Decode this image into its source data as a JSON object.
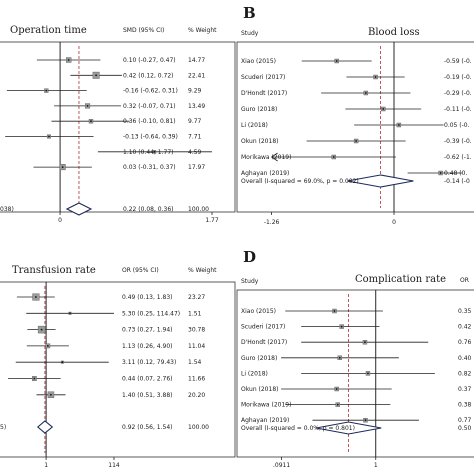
{
  "chart_data": [
    {
      "type": "forest",
      "panel": "A",
      "title": "Operation time",
      "effect_label": "SMD (95% CI)",
      "weight_label": "% Weight",
      "study_header": "",
      "overall": {
        "label_visible": "038)",
        "est": 0.22,
        "lo": 0.08,
        "hi": 0.36,
        "ci_text": "0.22 (0.08, 0.36)",
        "weight": "100.00"
      },
      "studies": [
        {
          "name": "",
          "est": 0.1,
          "lo": -0.27,
          "hi": 0.47,
          "ci_text": "0.10 (-0.27, 0.47)",
          "weight": "14.77"
        },
        {
          "name": "",
          "est": 0.42,
          "lo": 0.12,
          "hi": 0.72,
          "ci_text": "0.42 (0.12, 0.72)",
          "weight": "22.41"
        },
        {
          "name": "",
          "est": -0.16,
          "lo": -0.62,
          "hi": 0.31,
          "ci_text": "-0.16 (-0.62, 0.31)",
          "weight": "9.29"
        },
        {
          "name": "",
          "est": 0.32,
          "lo": -0.07,
          "hi": 0.71,
          "ci_text": "0.32 (-0.07, 0.71)",
          "weight": "13.49"
        },
        {
          "name": "",
          "est": 0.36,
          "lo": -0.1,
          "hi": 0.81,
          "ci_text": "0.36 (-0.10, 0.81)",
          "weight": "9.77"
        },
        {
          "name": "",
          "est": -0.13,
          "lo": -0.64,
          "hi": 0.39,
          "ci_text": "-0.13 (-0.64, 0.39)",
          "weight": "7.71"
        },
        {
          "name": "",
          "est": 1.1,
          "lo": 0.44,
          "hi": 1.77,
          "ci_text": "1.10 (0.44, 1.77)",
          "weight": "4.59"
        },
        {
          "name": "",
          "est": 0.03,
          "lo": -0.31,
          "hi": 0.37,
          "ci_text": "0.03 (-0.31, 0.37)",
          "weight": "17.97"
        }
      ],
      "x_ticks": [
        "0",
        "1.77"
      ]
    },
    {
      "type": "forest",
      "panel": "B",
      "title": "Blood loss",
      "effect_label": "",
      "weight_label": "",
      "study_header": "Study",
      "overall": {
        "label_visible": "Overall  (I-squared = 69.0%, p = 0.002)",
        "est": -0.14,
        "lo": -0.48,
        "hi": 0.2,
        "ci_text": "-0.14 (-0",
        "weight": ""
      },
      "studies": [
        {
          "name": "Xiao (2015)",
          "est": -0.59,
          "lo": -0.95,
          "hi": -0.23,
          "ci_text": "-0.59 (-0.",
          "weight": ""
        },
        {
          "name": "Scuderi (2017)",
          "est": -0.19,
          "lo": -0.49,
          "hi": 0.11,
          "ci_text": "-0.19 (-0.",
          "weight": ""
        },
        {
          "name": "D'Hondt (2017)",
          "est": -0.29,
          "lo": -0.75,
          "hi": 0.17,
          "ci_text": "-0.29 (-0.",
          "weight": ""
        },
        {
          "name": "Guro (2018)",
          "est": -0.11,
          "lo": -0.5,
          "hi": 0.28,
          "ci_text": "-0.11 (-0.",
          "weight": ""
        },
        {
          "name": "Li (2018)",
          "est": 0.05,
          "lo": -0.41,
          "hi": 0.51,
          "ci_text": "0.05 (-0.",
          "weight": ""
        },
        {
          "name": "Okun (2018)",
          "est": -0.39,
          "lo": -0.9,
          "hi": 0.12,
          "ci_text": "-0.39 (-0.",
          "weight": ""
        },
        {
          "name": "Morikawa (2019)",
          "est": -0.62,
          "lo": -1.26,
          "hi": 0.02,
          "ci_text": "-0.62 (-1.",
          "weight": ""
        },
        {
          "name": "Aghayan (2019)",
          "est": 0.48,
          "lo": 0.14,
          "hi": 0.82,
          "ci_text": "0.48 (0.",
          "weight": ""
        }
      ],
      "x_ticks": [
        "-1.26",
        "0"
      ]
    },
    {
      "type": "forest",
      "panel": "C",
      "title": "Transfusion rate",
      "effect_label": "OR (95% CI)",
      "weight_label": "% Weight",
      "study_header": "",
      "overall": {
        "label_visible": "5)",
        "est": 0.92,
        "lo": 0.56,
        "hi": 1.54,
        "ci_text": "0.92 (0.56, 1.54)",
        "weight": "100.00"
      },
      "studies": [
        {
          "name": "",
          "est": 0.49,
          "lo": 0.13,
          "hi": 1.83,
          "ci_text": "0.49 (0.13, 1.83)",
          "weight": "23.27"
        },
        {
          "name": "",
          "est": 5.3,
          "lo": 0.25,
          "hi": 114.47,
          "ci_text": "5.30 (0.25, 114.47)",
          "weight": "1.51"
        },
        {
          "name": "",
          "est": 0.73,
          "lo": 0.27,
          "hi": 1.94,
          "ci_text": "0.73 (0.27, 1.94)",
          "weight": "30.78"
        },
        {
          "name": "",
          "est": 1.13,
          "lo": 0.26,
          "hi": 4.9,
          "ci_text": "1.13 (0.26, 4.90)",
          "weight": "11.04"
        },
        {
          "name": "",
          "est": 3.11,
          "lo": 0.12,
          "hi": 79.43,
          "ci_text": "3.11 (0.12, 79.43)",
          "weight": "1.54"
        },
        {
          "name": "",
          "est": 0.44,
          "lo": 0.07,
          "hi": 2.76,
          "ci_text": "0.44 (0.07, 2.76)",
          "weight": "11.66"
        },
        {
          "name": "",
          "est": 1.4,
          "lo": 0.51,
          "hi": 3.88,
          "ci_text": "1.40 (0.51, 3.88)",
          "weight": "20.20"
        }
      ],
      "x_ticks": [
        "1",
        "114"
      ]
    },
    {
      "type": "forest",
      "panel": "D",
      "title": "Complication rate",
      "effect_label": "OR",
      "weight_label": "",
      "study_header": "Study",
      "overall": {
        "label_visible": "Overall  (I-squared = 0.0%, p = 0.801)",
        "est": 0.5,
        "lo": 0.22,
        "hi": 1.15,
        "ci_text": "0.50",
        "weight": ""
      },
      "studies": [
        {
          "name": "Xiao (2015)",
          "est": 0.35,
          "lo": 0.1,
          "hi": 1.2,
          "ci_text": "0.35",
          "weight": ""
        },
        {
          "name": "Scuderi (2017)",
          "est": 0.42,
          "lo": 0.15,
          "hi": 1.1,
          "ci_text": "0.42",
          "weight": ""
        },
        {
          "name": "D'Hondt (2017)",
          "est": 0.76,
          "lo": 0.15,
          "hi": 3.8,
          "ci_text": "0.76",
          "weight": ""
        },
        {
          "name": "Guro (2018)",
          "est": 0.4,
          "lo": 0.09,
          "hi": 1.8,
          "ci_text": "0.40",
          "weight": ""
        },
        {
          "name": "Li (2018)",
          "est": 0.82,
          "lo": 0.15,
          "hi": 4.5,
          "ci_text": "0.82",
          "weight": ""
        },
        {
          "name": "Okun (2018)",
          "est": 0.37,
          "lo": 0.09,
          "hi": 1.5,
          "ci_text": "0.37",
          "weight": ""
        },
        {
          "name": "Morikawa (2019)",
          "est": 0.38,
          "lo": 0.1,
          "hi": 1.45,
          "ci_text": "0.38",
          "weight": ""
        },
        {
          "name": "Aghayan (2019)",
          "est": 0.77,
          "lo": 0.2,
          "hi": 3.0,
          "ci_text": "0.77",
          "weight": ""
        }
      ],
      "x_ticks": [
        ".0911",
        "1"
      ]
    }
  ],
  "panel_letters": [
    "B",
    "D"
  ]
}
